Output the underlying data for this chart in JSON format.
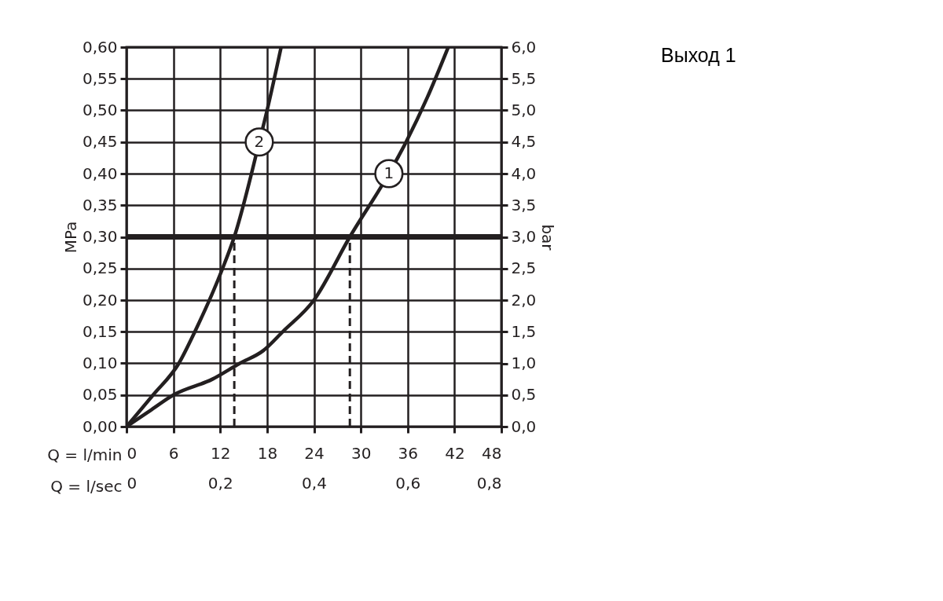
{
  "chart_data": {
    "type": "line",
    "title": "Выход 1",
    "xlabel": "Q = l/min",
    "x2label": "Q = l/sec",
    "ylabel": "MPa",
    "y2label": "bar",
    "xlim": [
      0,
      48
    ],
    "xticks": [
      0,
      6,
      12,
      18,
      24,
      30,
      36,
      42,
      48
    ],
    "x2lim": [
      0,
      0.8
    ],
    "x2ticks": [
      {
        "value": 0,
        "label": "0"
      },
      {
        "value": 0.2,
        "label": "0,2"
      },
      {
        "value": 0.4,
        "label": "0,4"
      },
      {
        "value": 0.6,
        "label": "0,6"
      },
      {
        "value": 0.8,
        "label": "0,8"
      }
    ],
    "ylim": [
      0,
      0.6
    ],
    "yticks": [
      {
        "value": 0,
        "label": "0,00"
      },
      {
        "value": 0.05,
        "label": "0,05"
      },
      {
        "value": 0.1,
        "label": "0,10"
      },
      {
        "value": 0.15,
        "label": "0,15"
      },
      {
        "value": 0.2,
        "label": "0,20"
      },
      {
        "value": 0.25,
        "label": "0,25"
      },
      {
        "value": 0.3,
        "label": "0,30"
      },
      {
        "value": 0.35,
        "label": "0,35"
      },
      {
        "value": 0.4,
        "label": "0,40"
      },
      {
        "value": 0.45,
        "label": "0,45"
      },
      {
        "value": 0.5,
        "label": "0,50"
      },
      {
        "value": 0.55,
        "label": "0,55"
      },
      {
        "value": 0.6,
        "label": "0,60"
      }
    ],
    "y2lim": [
      0,
      6
    ],
    "y2ticks": [
      {
        "value": 0,
        "label": "0,0"
      },
      {
        "value": 0.5,
        "label": "0,5"
      },
      {
        "value": 1,
        "label": "1,0"
      },
      {
        "value": 1.5,
        "label": "1,5"
      },
      {
        "value": 2,
        "label": "2,0"
      },
      {
        "value": 2.5,
        "label": "2,5"
      },
      {
        "value": 3,
        "label": "3,0"
      },
      {
        "value": 3.5,
        "label": "3,5"
      },
      {
        "value": 4,
        "label": "4,0"
      },
      {
        "value": 4.5,
        "label": "4,5"
      },
      {
        "value": 5,
        "label": "5,0"
      },
      {
        "value": 5.5,
        "label": "5,5"
      },
      {
        "value": 6,
        "label": "6,0"
      }
    ],
    "grid": true,
    "series": [
      {
        "name": "1",
        "color": "#231f20",
        "x": [
          0,
          3,
          6,
          11,
          14.5,
          17.5,
          20,
          24,
          28.6,
          33.6,
          35.8,
          38.5,
          41.2
        ],
        "values": [
          0,
          0.025,
          0.05,
          0.075,
          0.1,
          0.12,
          0.15,
          0.2,
          0.3,
          0.4,
          0.45,
          0.52,
          0.6
        ]
      },
      {
        "name": "2",
        "color": "#231f20",
        "x": [
          0,
          3.4,
          6.7,
          8.75,
          12.3,
          13.8,
          17,
          18,
          19.8
        ],
        "values": [
          0,
          0.05,
          0.1,
          0.15,
          0.25,
          0.3,
          0.45,
          0.5,
          0.6
        ]
      },
      {
        "color": "#231f20",
        "line_style": "dashed",
        "x": [
          13.8,
          13.8
        ],
        "values": [
          0,
          0.3
        ]
      },
      {
        "color": "#231f20",
        "line_style": "dashed",
        "x": [
          28.6,
          28.6
        ],
        "values": [
          0,
          0.3
        ]
      }
    ],
    "ref_lines": [
      {
        "axis": "y",
        "value": 0.3,
        "color": "#231f20"
      }
    ]
  }
}
